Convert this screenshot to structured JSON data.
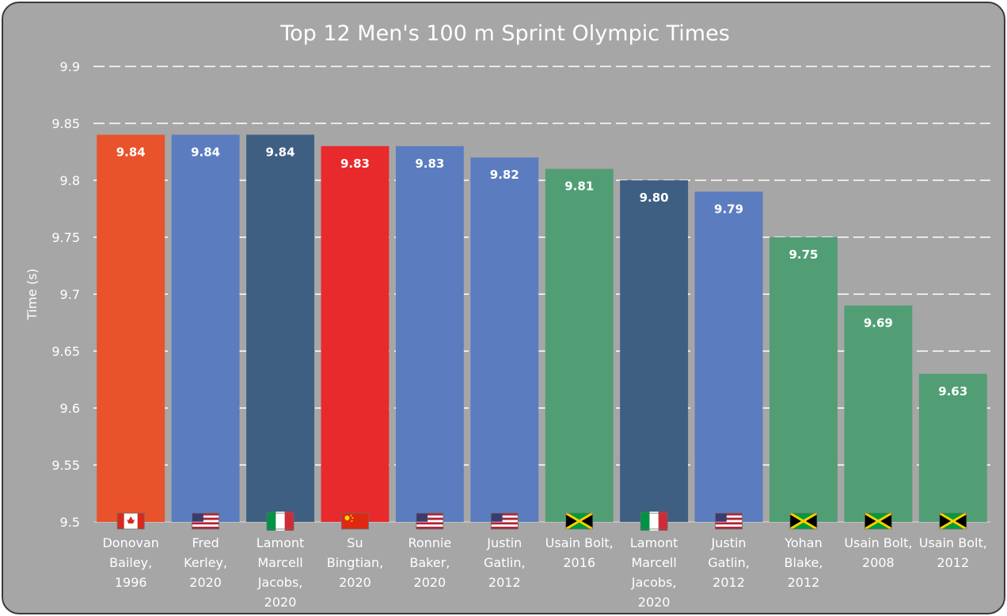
{
  "chart_data": {
    "type": "bar",
    "title": "Top 12 Men's 100 m Sprint Olympic Times",
    "xlabel": "",
    "ylabel": "Time (s)",
    "ylim": [
      9.5,
      9.9
    ],
    "yticks": [
      "9.5",
      "9.55",
      "9.6",
      "9.65",
      "9.7",
      "9.75",
      "9.8",
      "9.85",
      "9.9"
    ],
    "grid": true,
    "legend": "none",
    "categories": [
      [
        "Donovan",
        "Bailey,",
        "1996"
      ],
      [
        "Fred",
        "Kerley,",
        "2020"
      ],
      [
        "Lamont",
        "Marcell",
        "Jacobs,",
        "2020"
      ],
      [
        "Su",
        "Bingtian,",
        "2020"
      ],
      [
        "Ronnie",
        "Baker,",
        "2020"
      ],
      [
        "Justin",
        "Gatlin,",
        "2012"
      ],
      [
        "Usain Bolt,",
        "2016"
      ],
      [
        "Lamont",
        "Marcell",
        "Jacobs,",
        "2020"
      ],
      [
        "Justin",
        "Gatlin,",
        "2012"
      ],
      [
        "Yohan",
        "Blake,",
        "2012"
      ],
      [
        "Usain Bolt,",
        "2008"
      ],
      [
        "Usain Bolt,",
        "2012"
      ]
    ],
    "values": [
      9.84,
      9.84,
      9.84,
      9.83,
      9.83,
      9.82,
      9.81,
      9.8,
      9.79,
      9.75,
      9.69,
      9.63
    ],
    "data_labels": [
      "9.84",
      "9.84",
      "9.84",
      "9.83",
      "9.83",
      "9.82",
      "9.81",
      "9.80",
      "9.79",
      "9.75",
      "9.69",
      "9.63"
    ],
    "bar_colors": [
      "#e8532b",
      "#5b7dbf",
      "#3e5f82",
      "#e82a2d",
      "#5b7dbf",
      "#5b7dbf",
      "#519e75",
      "#3e5f82",
      "#5b7dbf",
      "#519e75",
      "#519e75",
      "#519e75"
    ],
    "flags": [
      "canada-flag-icon",
      "usa-flag-icon",
      "italy-flag-icon",
      "china-flag-icon",
      "usa-flag-icon",
      "usa-flag-icon",
      "jamaica-flag-icon",
      "italy-flag-icon",
      "usa-flag-icon",
      "jamaica-flag-icon",
      "jamaica-flag-icon",
      "jamaica-flag-icon"
    ]
  },
  "colors": {
    "background": "#a6a6a6",
    "gridline": "#ffffff",
    "text": "#ffffff",
    "border": "#3a3a3a"
  }
}
